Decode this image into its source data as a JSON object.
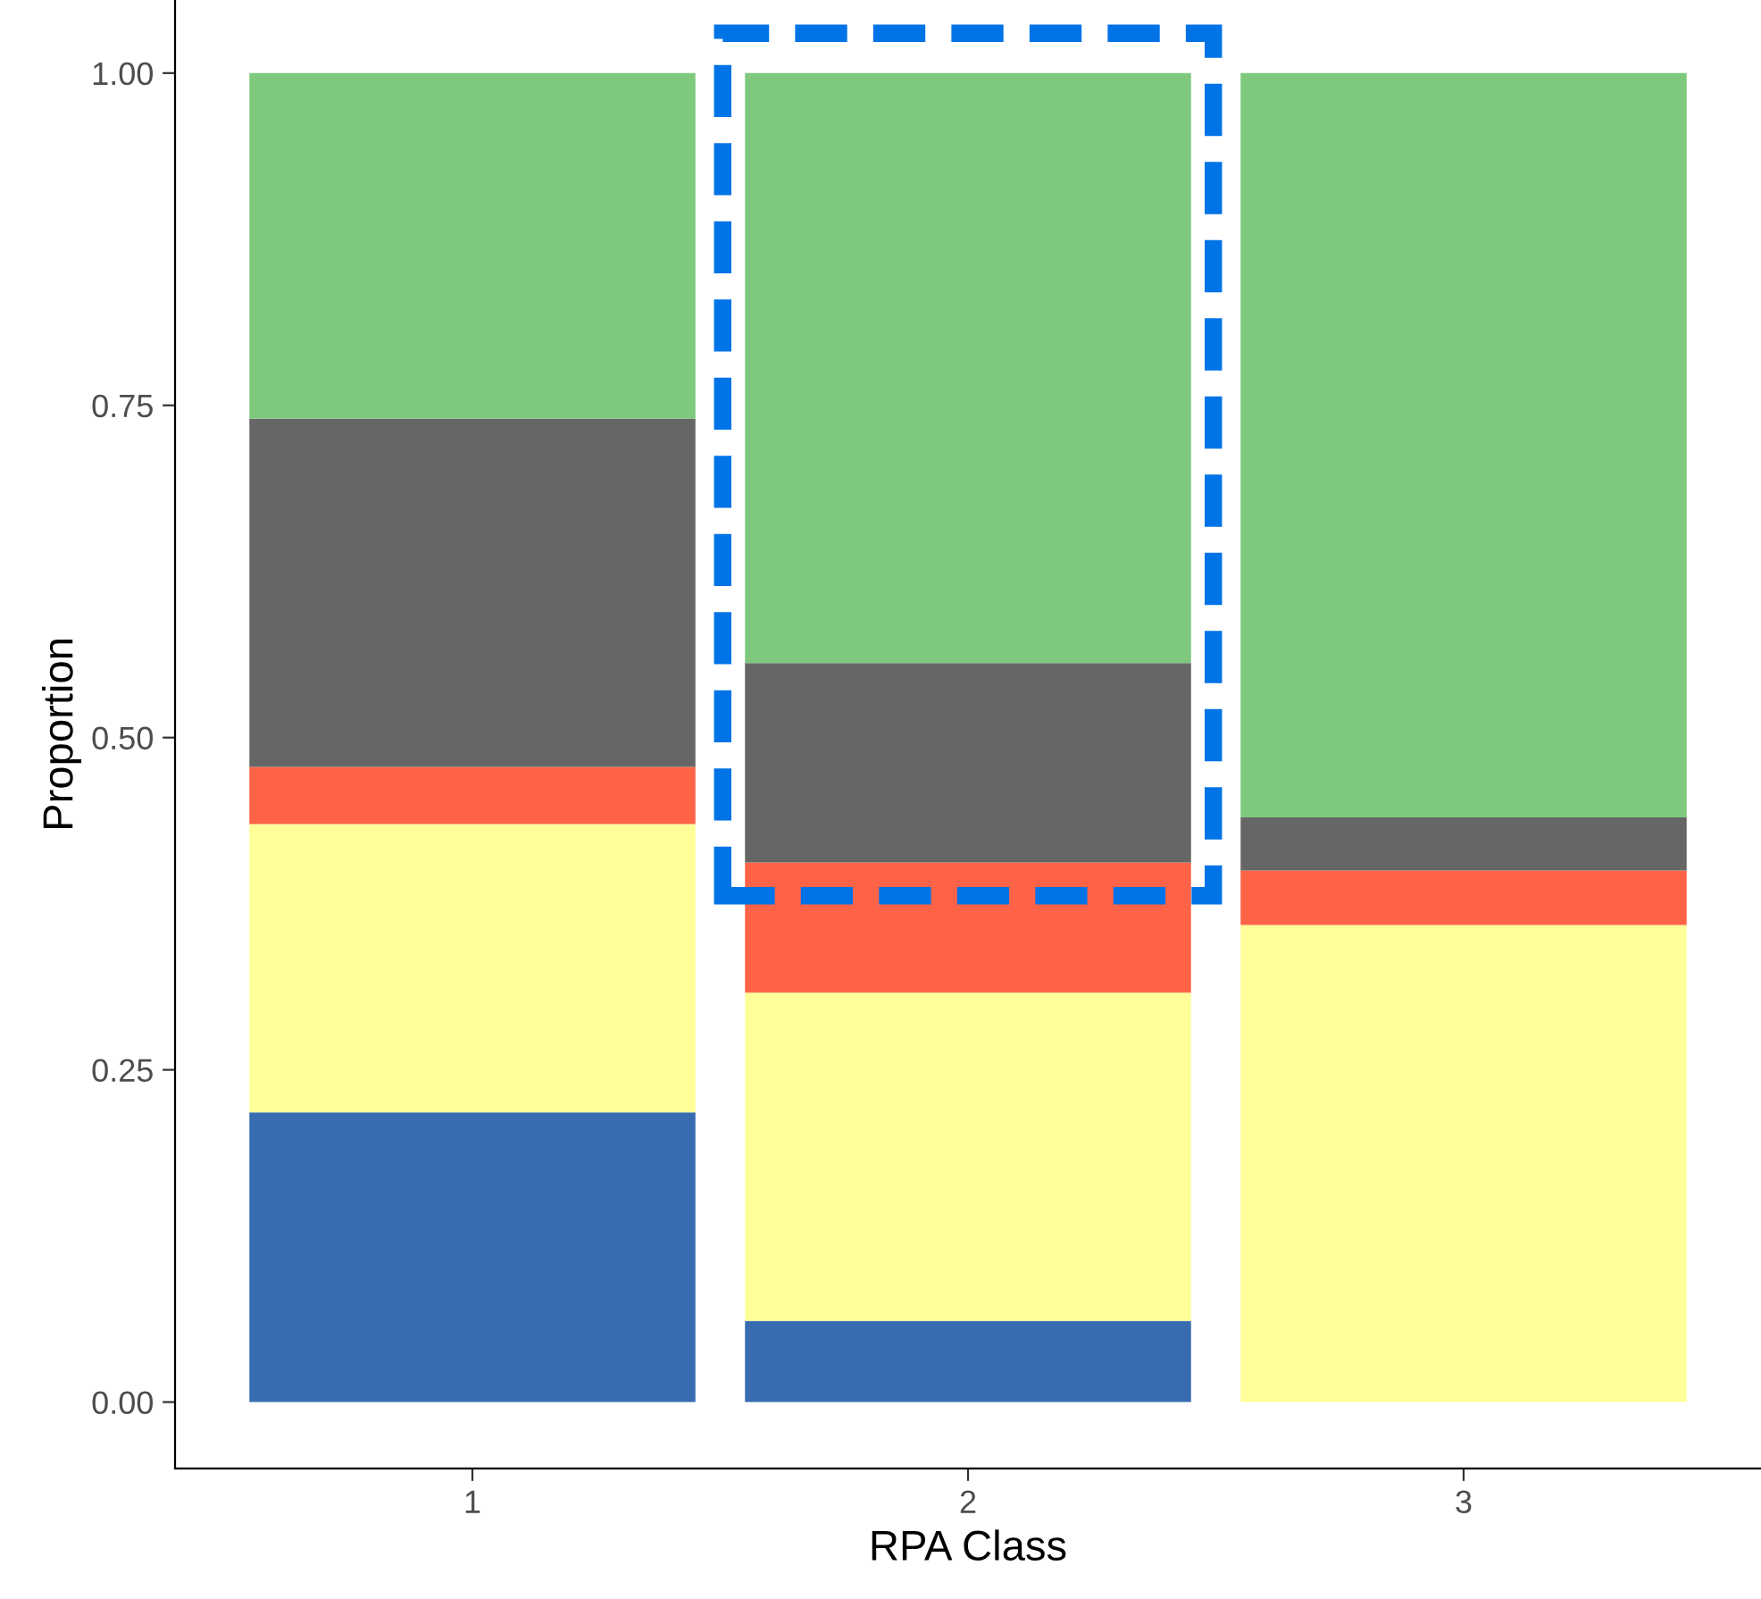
{
  "chart_data": {
    "type": "bar",
    "stacked": true,
    "xlabel": "RPA Class",
    "ylabel": "Proportion",
    "categories": [
      "1",
      "2",
      "3"
    ],
    "series": [
      {
        "color": "#386cb0",
        "values": [
          0.218,
          0.061,
          0
        ]
      },
      {
        "color": "#ffff99",
        "values": [
          0.217,
          0.247,
          0.359
        ]
      },
      {
        "color": "#ff6347",
        "values": [
          0.043,
          0.098,
          0.041
        ]
      },
      {
        "color": "#666666",
        "values": [
          0.262,
          0.15,
          0.04
        ]
      },
      {
        "color": "#7fc97f",
        "values": [
          0.26,
          0.444,
          0.56
        ]
      }
    ],
    "ylim": [
      -0.05,
      1.055
    ],
    "yticks": [
      {
        "value": 0,
        "label": "0.00"
      },
      {
        "value": 0.25,
        "label": "0.25"
      },
      {
        "value": 0.5,
        "label": "0.50"
      },
      {
        "value": 0.75,
        "label": "0.75"
      },
      {
        "value": 1,
        "label": "1.00"
      }
    ],
    "grid": false,
    "legend": false
  }
}
